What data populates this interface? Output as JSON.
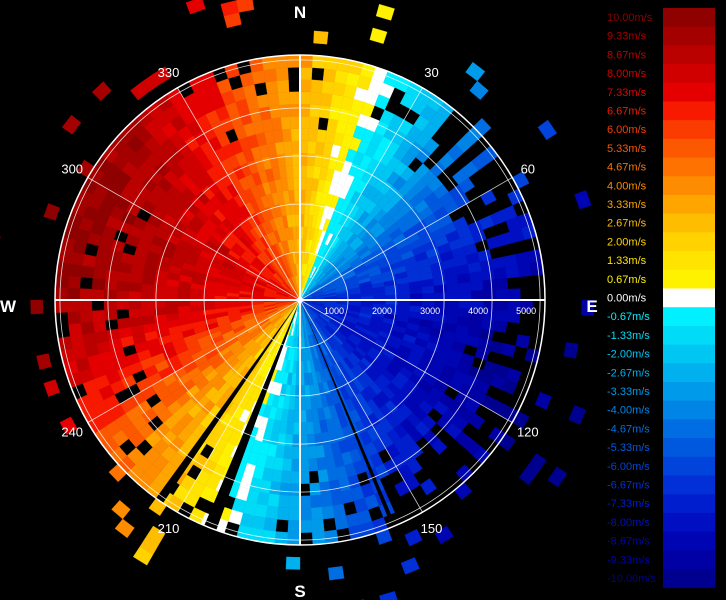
{
  "chart_data": {
    "type": "heatmap",
    "subtype": "polar-ppi",
    "compass": {
      "north": "N",
      "east": "E",
      "south": "S",
      "west": "W"
    },
    "azimuth_ticks": [
      "30",
      "60",
      "120",
      "150",
      "210",
      "240",
      "300",
      "330"
    ],
    "azimuth_tick_values": [
      30,
      60,
      120,
      150,
      210,
      240,
      300,
      330
    ],
    "range_ticks": [
      "1000",
      "2000",
      "3000",
      "4000",
      "5000"
    ],
    "range_tick_values": [
      1000,
      2000,
      3000,
      4000,
      5000
    ],
    "range_max": 5000,
    "radial_velocity_bins": [
      {
        "value": 10.0,
        "label": "10.00m/s",
        "color": "#8f0000"
      },
      {
        "value": 9.33,
        "label": "9.33m/s",
        "color": "#a50000"
      },
      {
        "value": 8.67,
        "label": "8.67m/s",
        "color": "#bb0000"
      },
      {
        "value": 8.0,
        "label": "8.00m/s",
        "color": "#d00000"
      },
      {
        "value": 7.33,
        "label": "7.33m/s",
        "color": "#e40000"
      },
      {
        "value": 6.67,
        "label": "6.67m/s",
        "color": "#f71a00"
      },
      {
        "value": 6.0,
        "label": "6.00m/s",
        "color": "#fb3c00"
      },
      {
        "value": 5.33,
        "label": "5.33m/s",
        "color": "#fc5800"
      },
      {
        "value": 4.67,
        "label": "4.67m/s",
        "color": "#fd7200"
      },
      {
        "value": 4.0,
        "label": "4.00m/s",
        "color": "#fe8c00"
      },
      {
        "value": 3.33,
        "label": "3.33m/s",
        "color": "#fea500"
      },
      {
        "value": 2.67,
        "label": "2.67m/s",
        "color": "#ffbd00"
      },
      {
        "value": 2.0,
        "label": "2.00m/s",
        "color": "#ffd200"
      },
      {
        "value": 1.33,
        "label": "1.33m/s",
        "color": "#ffe400"
      },
      {
        "value": 0.67,
        "label": "0.67m/s",
        "color": "#fff200"
      },
      {
        "value": 0.0,
        "label": "0.00m/s",
        "color": "#ffffff"
      },
      {
        "value": -0.67,
        "label": "-0.67m/s",
        "color": "#00f0ff"
      },
      {
        "value": -1.33,
        "label": "-1.33m/s",
        "color": "#00dcf8"
      },
      {
        "value": -2.0,
        "label": "-2.00m/s",
        "color": "#00c6f4"
      },
      {
        "value": -2.67,
        "label": "-2.67m/s",
        "color": "#00b0ef"
      },
      {
        "value": -3.33,
        "label": "-3.33m/s",
        "color": "#009aea"
      },
      {
        "value": -4.0,
        "label": "-4.00m/s",
        "color": "#0084e6"
      },
      {
        "value": -4.67,
        "label": "-4.67m/s",
        "color": "#006ee2"
      },
      {
        "value": -5.33,
        "label": "-5.33m/s",
        "color": "#0058df"
      },
      {
        "value": -6.0,
        "label": "-6.00m/s",
        "color": "#0044dc"
      },
      {
        "value": -6.67,
        "label": "-6.67m/s",
        "color": "#0030d6"
      },
      {
        "value": -7.33,
        "label": "-7.33m/s",
        "color": "#001ecd"
      },
      {
        "value": -8.0,
        "label": "-8.00m/s",
        "color": "#000fc2"
      },
      {
        "value": -8.67,
        "label": "-8.67m/s",
        "color": "#0005b4"
      },
      {
        "value": -9.33,
        "label": "-9.33m/s",
        "color": "#0000a4"
      },
      {
        "value": -10.0,
        "label": "-10.00m/s",
        "color": "#000090"
      }
    ],
    "grid": true,
    "legend": "right"
  }
}
